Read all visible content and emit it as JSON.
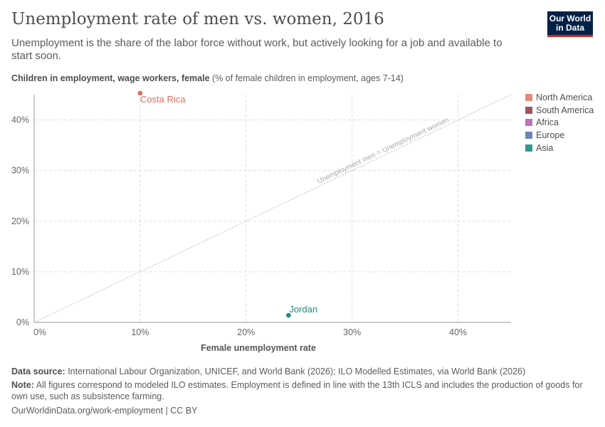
{
  "header": {
    "title": "Unemployment rate of men vs. women, 2016",
    "subtitle": "Unemployment is the share of the labor force without work, but actively looking for a job and available to start soon.",
    "logo": "Our World in Data"
  },
  "chart_data": {
    "type": "scatter",
    "title": "Unemployment rate of men vs. women, 2016",
    "ylabel_bold": "Children in employment, wage workers, female",
    "ylabel_rest": " (% of female children in employment, ages 7-14)",
    "xlabel": "Female unemployment rate",
    "xlim": [
      0,
      45
    ],
    "ylim": [
      0,
      45
    ],
    "xticks": [
      0,
      10,
      20,
      30,
      40
    ],
    "yticks": [
      0,
      10,
      20,
      30,
      40
    ],
    "tick_format": "%",
    "grid": true,
    "reference_line": {
      "label": "Unemployment men = Unemployment women",
      "from": [
        0,
        0
      ],
      "to": [
        45,
        45
      ]
    },
    "legend": [
      {
        "name": "North America",
        "color": "#e58a7a"
      },
      {
        "name": "South America",
        "color": "#a2555f"
      },
      {
        "name": "Africa",
        "color": "#b977b6"
      },
      {
        "name": "Europe",
        "color": "#6d85b3"
      },
      {
        "name": "Asia",
        "color": "#2e9a8f"
      }
    ],
    "legend_placement": "right",
    "points": [
      {
        "label": "Costa Rica",
        "x": 10,
        "y": 45.3,
        "region": "North America",
        "color": "#e06c5a"
      },
      {
        "label": "Jordan",
        "x": 24,
        "y": 1.4,
        "region": "Asia",
        "color": "#218a80"
      }
    ]
  },
  "footer": {
    "source_label": "Data source:",
    "source": " International Labour Organization, UNICEF, and World Bank (2026); ILO Modelled Estimates, via World Bank (2026)",
    "note_label": "Note:",
    "note": " All figures correspond to modeled ILO estimates. Employment is defined in line with the 13th ICLS and includes the production of goods for own use, such as subsistence farming.",
    "url": "OurWorldinData.org/work-employment | CC BY"
  }
}
